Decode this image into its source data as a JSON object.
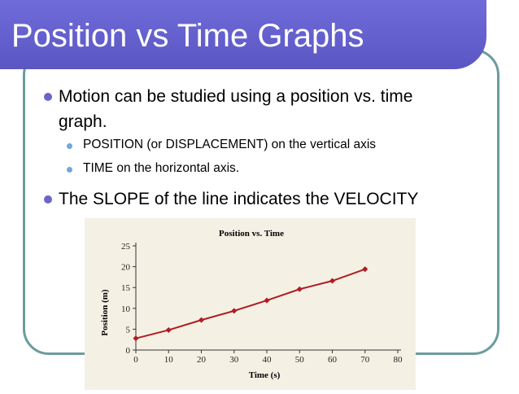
{
  "slide": {
    "title": "Position vs Time Graphs",
    "colors": {
      "title_bar": "#5a56c4",
      "bullet": "#6b65c8",
      "sub_bullet": "#6fa8dc",
      "frame": "#6b9c9c",
      "line": "#b01c24"
    },
    "bullets": [
      {
        "text_line1": "Motion can be studied using a position vs. time",
        "text_line2": "graph.",
        "sub": [
          "POSITION (or DISPLACEMENT) on the vertical axis",
          "TIME on the horizontal axis."
        ]
      },
      {
        "text_line1": "The SLOPE of the line indicates the VELOCITY"
      }
    ]
  },
  "chart_data": {
    "type": "line",
    "title": "Position vs. Time",
    "xlabel": "Time (s)",
    "ylabel": "Position (m)",
    "x_ticks": [
      "0",
      "10",
      "20",
      "30",
      "40",
      "50",
      "60",
      "70",
      "80"
    ],
    "y_ticks": [
      "0",
      "5",
      "10",
      "15",
      "20",
      "25"
    ],
    "xlim": [
      0,
      80
    ],
    "ylim": [
      0,
      25
    ],
    "grid": false,
    "series": [
      {
        "x": [
          0,
          10,
          20,
          30,
          40,
          50,
          60,
          70
        ],
        "y": [
          2.8,
          4.8,
          7.2,
          9.4,
          11.9,
          14.6,
          16.6,
          19.4
        ]
      }
    ]
  }
}
